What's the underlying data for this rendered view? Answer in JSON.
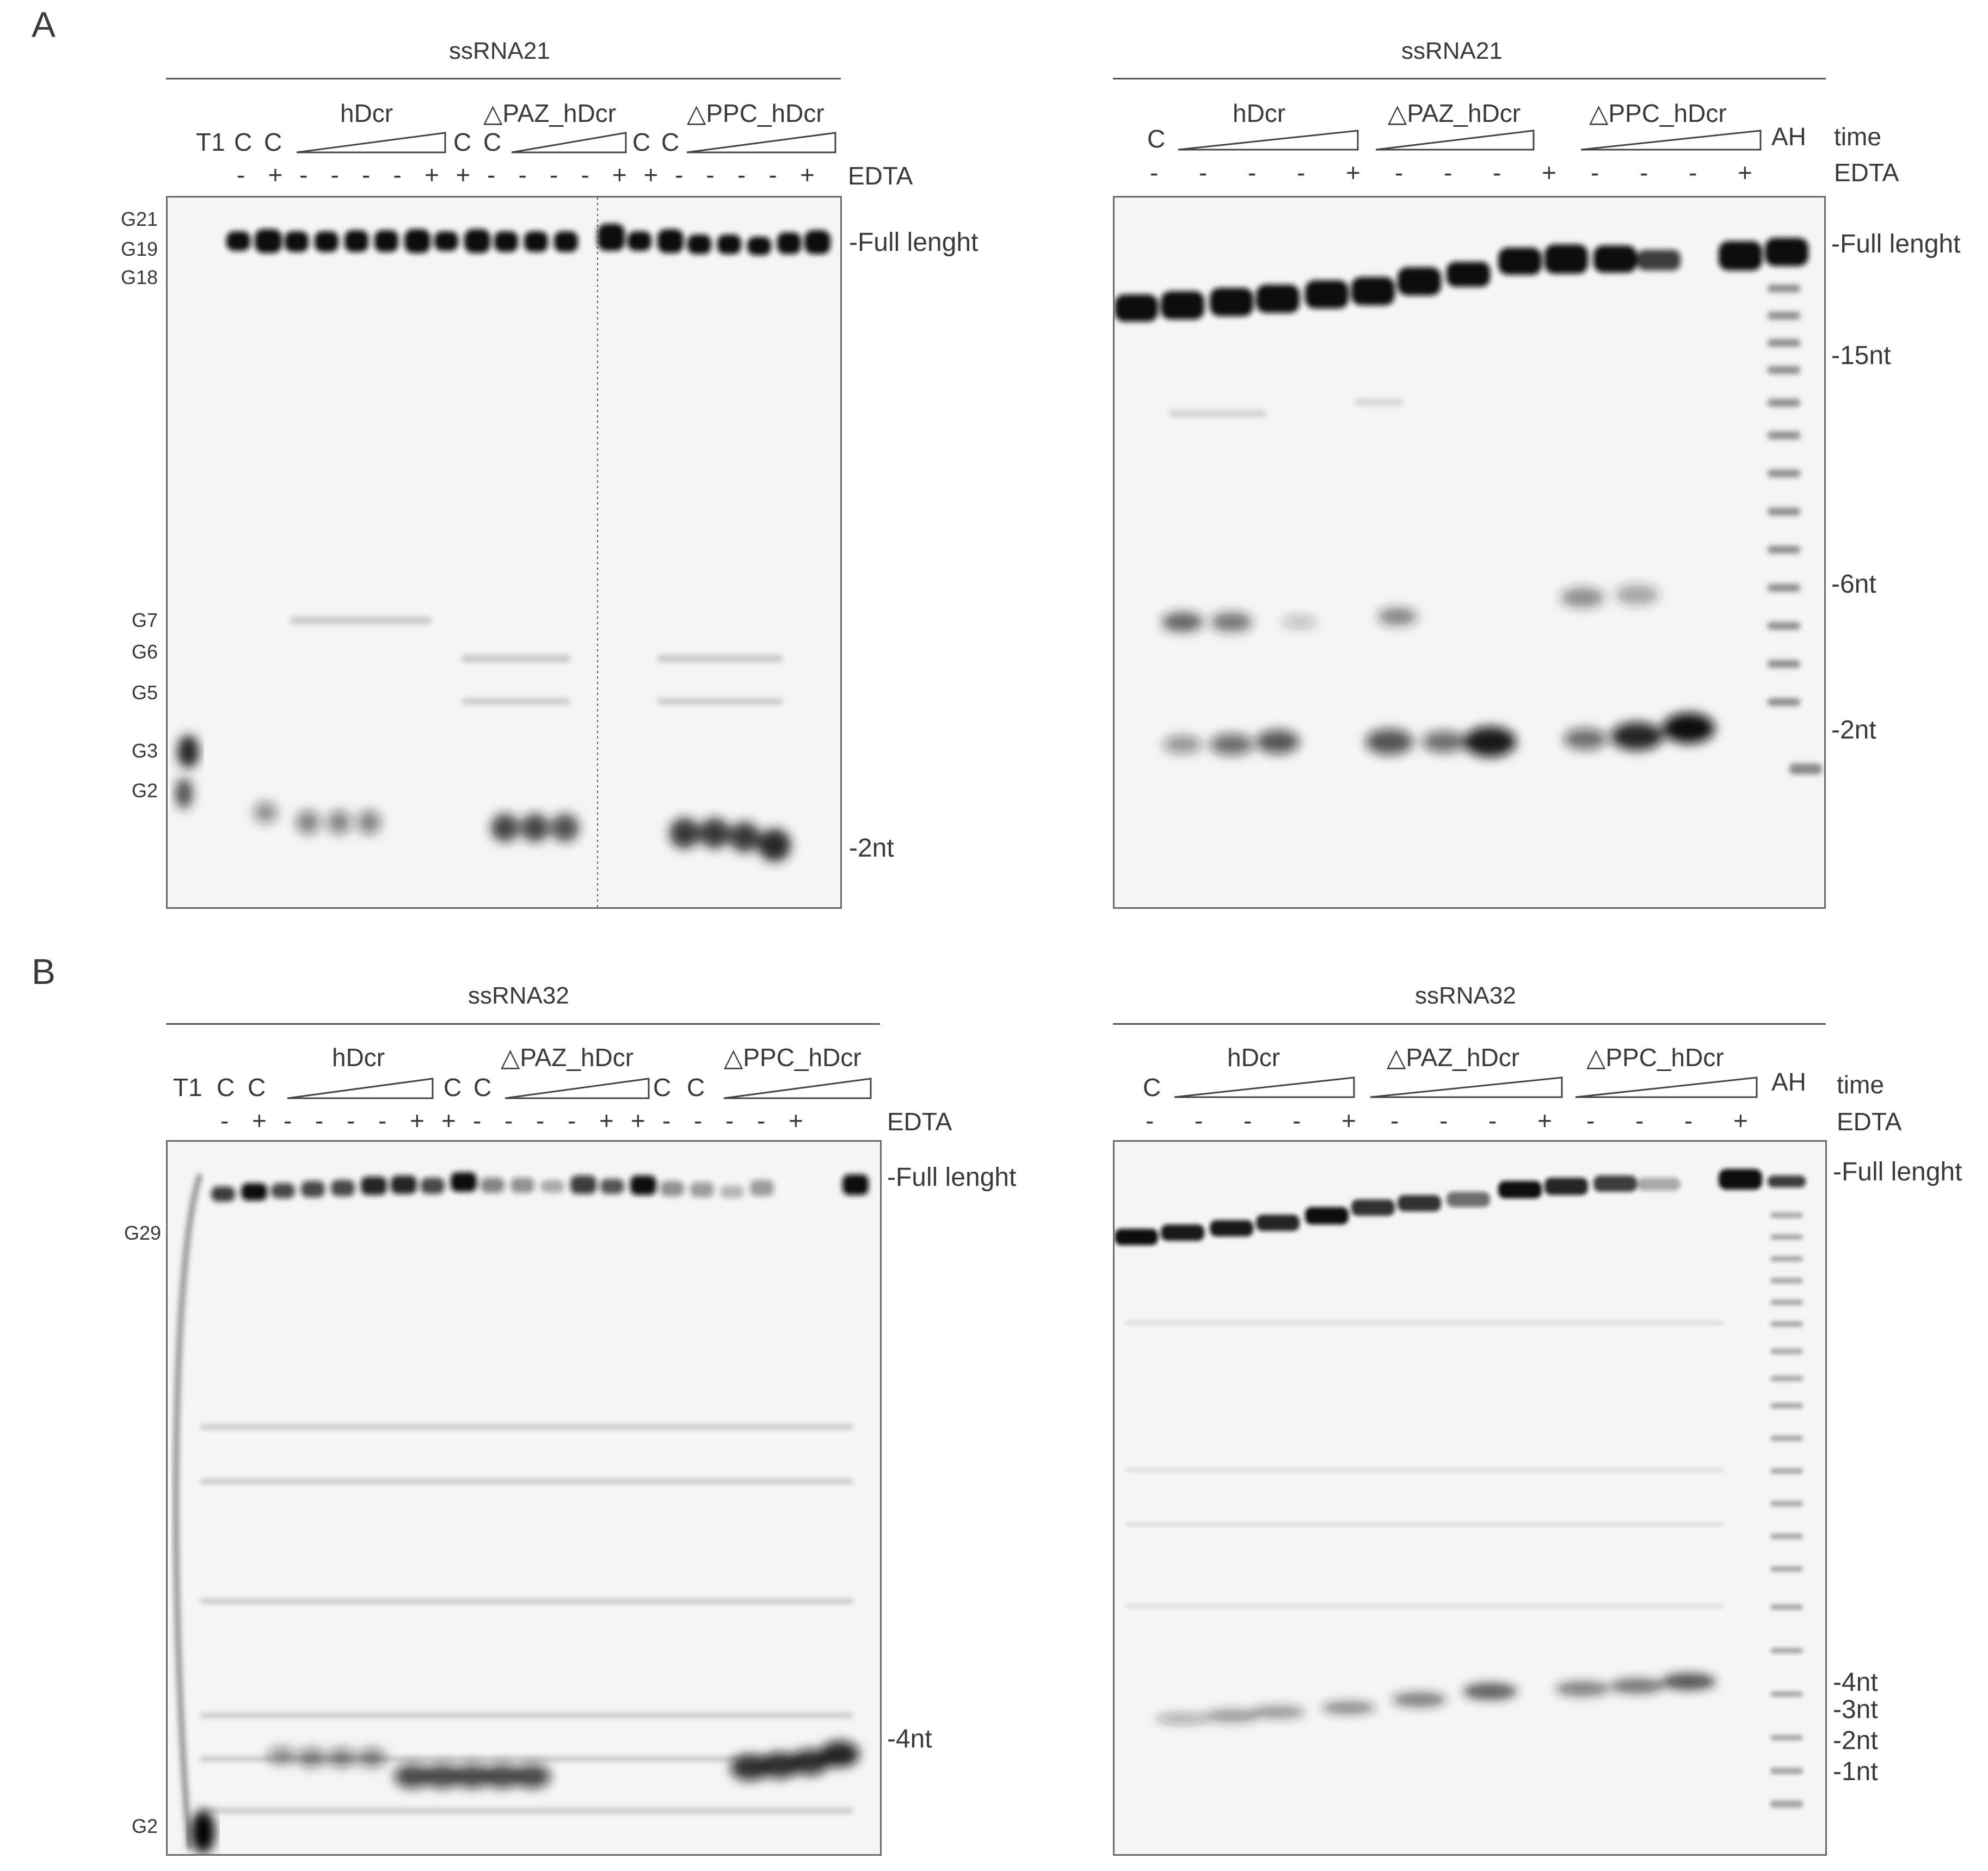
{
  "panels": {
    "A": {
      "letter": "A",
      "left": {
        "title": "ssRNA21",
        "lanes": [
          "T1",
          "C",
          "C",
          "C",
          "C",
          "C",
          "C"
        ],
        "groups": [
          "hDcr",
          "△PAZ_hDcr",
          "△PPC_hDcr"
        ],
        "edta_label": "EDTA",
        "edta": [
          "-",
          "+",
          "-",
          "-",
          "-",
          "-",
          "+",
          "+",
          "-",
          "-",
          "-",
          "-",
          "+",
          "+",
          "-",
          "-",
          "-",
          "-",
          "+"
        ],
        "g_markers": [
          "G21",
          "G19",
          "G18",
          "G7",
          "G6",
          "G5",
          "G3",
          "G2"
        ],
        "right_markers": [
          "-Full lenght",
          "-2nt"
        ]
      },
      "right": {
        "title": "ssRNA21",
        "lane_c": "C",
        "groups": [
          "hDcr",
          "△PAZ_hDcr",
          "△PPC_hDcr"
        ],
        "ah": "AH",
        "time_label": "time",
        "edta_label": "EDTA",
        "edta": [
          "-",
          "-",
          "-",
          "-",
          "+",
          "-",
          "-",
          "-",
          "+",
          "-",
          "-",
          "-",
          "+"
        ],
        "right_markers": [
          "-Full lenght",
          "-15nt",
          "-6nt",
          "-2nt"
        ]
      }
    },
    "B": {
      "letter": "B",
      "left": {
        "title": "ssRNA32",
        "lanes": [
          "T1",
          "C",
          "C",
          "C",
          "C",
          "C",
          "C"
        ],
        "groups": [
          "hDcr",
          "△PAZ_hDcr",
          "△PPC_hDcr"
        ],
        "edta_label": "EDTA",
        "edta": [
          "-",
          "+",
          "-",
          "-",
          "-",
          "-",
          "+",
          "+",
          "-",
          "-",
          "-",
          "-",
          "+",
          "+",
          "-",
          "-",
          "-",
          "-",
          "+"
        ],
        "g_markers": [
          "G29",
          "G2"
        ],
        "right_markers": [
          "-Full lenght",
          "-4nt"
        ]
      },
      "right": {
        "title": "ssRNA32",
        "lane_c": "C",
        "groups": [
          "hDcr",
          "△PAZ_hDcr",
          "△PPC_hDcr"
        ],
        "ah": "AH",
        "time_label": "time",
        "edta_label": "EDTA",
        "edta": [
          "-",
          "-",
          "-",
          "-",
          "+",
          "-",
          "-",
          "-",
          "+",
          "-",
          "-",
          "-",
          "+"
        ],
        "right_markers": [
          "-Full lenght",
          "-4nt",
          "-3nt",
          "-2nt",
          "-1nt"
        ]
      }
    }
  }
}
